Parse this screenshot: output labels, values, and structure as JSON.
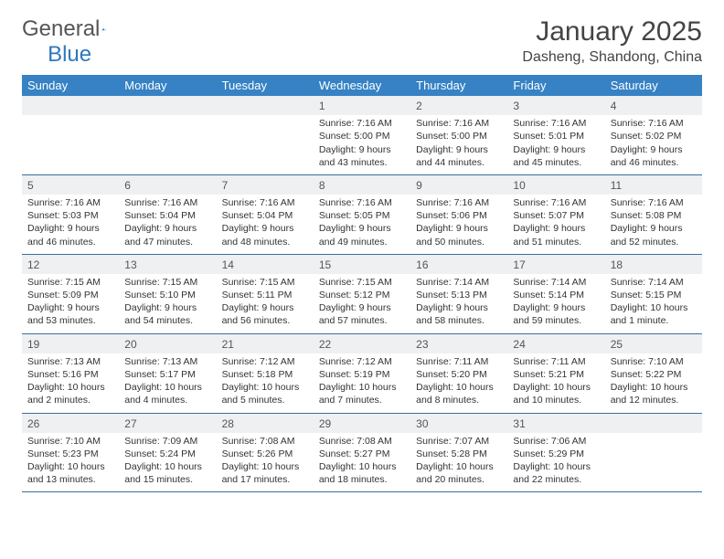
{
  "brand": {
    "part1": "General",
    "part2": "Blue"
  },
  "title": "January 2025",
  "location": "Dasheng, Shandong, China",
  "colors": {
    "header_bg": "#3682c4",
    "header_text": "#ffffff",
    "date_bg": "#eef0f2",
    "rule": "#3d6f9e",
    "logo_blue": "#2f78bd"
  },
  "day_names": [
    "Sunday",
    "Monday",
    "Tuesday",
    "Wednesday",
    "Thursday",
    "Friday",
    "Saturday"
  ],
  "weeks": [
    [
      null,
      null,
      null,
      {
        "d": "1",
        "sr": "7:16 AM",
        "ss": "5:00 PM",
        "dl": "9 hours and 43 minutes."
      },
      {
        "d": "2",
        "sr": "7:16 AM",
        "ss": "5:00 PM",
        "dl": "9 hours and 44 minutes."
      },
      {
        "d": "3",
        "sr": "7:16 AM",
        "ss": "5:01 PM",
        "dl": "9 hours and 45 minutes."
      },
      {
        "d": "4",
        "sr": "7:16 AM",
        "ss": "5:02 PM",
        "dl": "9 hours and 46 minutes."
      }
    ],
    [
      {
        "d": "5",
        "sr": "7:16 AM",
        "ss": "5:03 PM",
        "dl": "9 hours and 46 minutes."
      },
      {
        "d": "6",
        "sr": "7:16 AM",
        "ss": "5:04 PM",
        "dl": "9 hours and 47 minutes."
      },
      {
        "d": "7",
        "sr": "7:16 AM",
        "ss": "5:04 PM",
        "dl": "9 hours and 48 minutes."
      },
      {
        "d": "8",
        "sr": "7:16 AM",
        "ss": "5:05 PM",
        "dl": "9 hours and 49 minutes."
      },
      {
        "d": "9",
        "sr": "7:16 AM",
        "ss": "5:06 PM",
        "dl": "9 hours and 50 minutes."
      },
      {
        "d": "10",
        "sr": "7:16 AM",
        "ss": "5:07 PM",
        "dl": "9 hours and 51 minutes."
      },
      {
        "d": "11",
        "sr": "7:16 AM",
        "ss": "5:08 PM",
        "dl": "9 hours and 52 minutes."
      }
    ],
    [
      {
        "d": "12",
        "sr": "7:15 AM",
        "ss": "5:09 PM",
        "dl": "9 hours and 53 minutes."
      },
      {
        "d": "13",
        "sr": "7:15 AM",
        "ss": "5:10 PM",
        "dl": "9 hours and 54 minutes."
      },
      {
        "d": "14",
        "sr": "7:15 AM",
        "ss": "5:11 PM",
        "dl": "9 hours and 56 minutes."
      },
      {
        "d": "15",
        "sr": "7:15 AM",
        "ss": "5:12 PM",
        "dl": "9 hours and 57 minutes."
      },
      {
        "d": "16",
        "sr": "7:14 AM",
        "ss": "5:13 PM",
        "dl": "9 hours and 58 minutes."
      },
      {
        "d": "17",
        "sr": "7:14 AM",
        "ss": "5:14 PM",
        "dl": "9 hours and 59 minutes."
      },
      {
        "d": "18",
        "sr": "7:14 AM",
        "ss": "5:15 PM",
        "dl": "10 hours and 1 minute."
      }
    ],
    [
      {
        "d": "19",
        "sr": "7:13 AM",
        "ss": "5:16 PM",
        "dl": "10 hours and 2 minutes."
      },
      {
        "d": "20",
        "sr": "7:13 AM",
        "ss": "5:17 PM",
        "dl": "10 hours and 4 minutes."
      },
      {
        "d": "21",
        "sr": "7:12 AM",
        "ss": "5:18 PM",
        "dl": "10 hours and 5 minutes."
      },
      {
        "d": "22",
        "sr": "7:12 AM",
        "ss": "5:19 PM",
        "dl": "10 hours and 7 minutes."
      },
      {
        "d": "23",
        "sr": "7:11 AM",
        "ss": "5:20 PM",
        "dl": "10 hours and 8 minutes."
      },
      {
        "d": "24",
        "sr": "7:11 AM",
        "ss": "5:21 PM",
        "dl": "10 hours and 10 minutes."
      },
      {
        "d": "25",
        "sr": "7:10 AM",
        "ss": "5:22 PM",
        "dl": "10 hours and 12 minutes."
      }
    ],
    [
      {
        "d": "26",
        "sr": "7:10 AM",
        "ss": "5:23 PM",
        "dl": "10 hours and 13 minutes."
      },
      {
        "d": "27",
        "sr": "7:09 AM",
        "ss": "5:24 PM",
        "dl": "10 hours and 15 minutes."
      },
      {
        "d": "28",
        "sr": "7:08 AM",
        "ss": "5:26 PM",
        "dl": "10 hours and 17 minutes."
      },
      {
        "d": "29",
        "sr": "7:08 AM",
        "ss": "5:27 PM",
        "dl": "10 hours and 18 minutes."
      },
      {
        "d": "30",
        "sr": "7:07 AM",
        "ss": "5:28 PM",
        "dl": "10 hours and 20 minutes."
      },
      {
        "d": "31",
        "sr": "7:06 AM",
        "ss": "5:29 PM",
        "dl": "10 hours and 22 minutes."
      },
      null
    ]
  ],
  "labels": {
    "sunrise": "Sunrise:",
    "sunset": "Sunset:",
    "daylight": "Daylight:"
  }
}
